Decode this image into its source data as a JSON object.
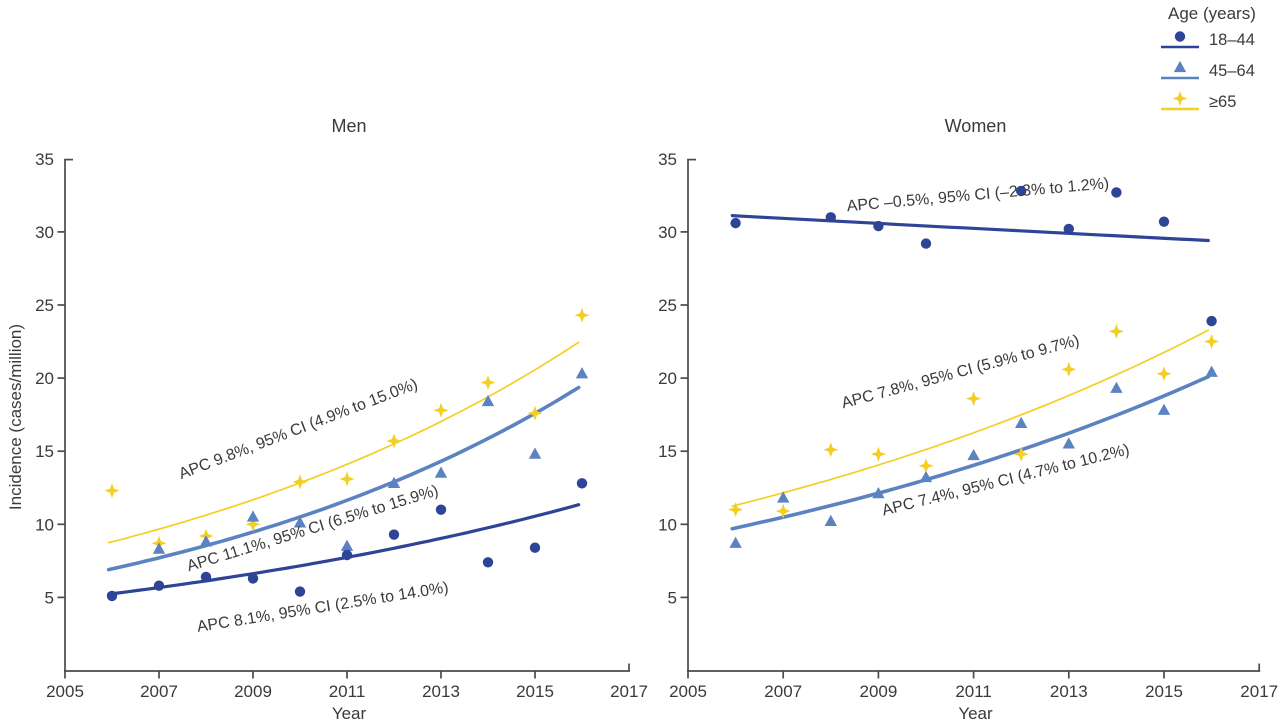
{
  "figure": {
    "colors": {
      "age_18_44": "#2e4496",
      "age_45_64": "#5b82c1",
      "age_65": "#f3cf26",
      "axis": "#4a4a4a",
      "text": "#3a3a3a"
    }
  },
  "legend": {
    "title": "Age (years)",
    "entries": [
      {
        "label": "18–44",
        "marker": "circle",
        "color": "#2e4496"
      },
      {
        "label": "45–64",
        "marker": "triangle",
        "color": "#5b82c1"
      },
      {
        "label": "≥65",
        "marker": "star",
        "color": "#f3cf26"
      }
    ]
  },
  "chart_data": [
    {
      "type": "scatter",
      "title": "Men",
      "xlabel": "Year",
      "ylabel": "Incidence (cases/million)",
      "xlim": [
        2005,
        2017
      ],
      "ylim": [
        0,
        35
      ],
      "x_ticks": [
        2005,
        2007,
        2009,
        2011,
        2013,
        2015,
        2017
      ],
      "y_ticks": [
        5,
        10,
        15,
        20,
        25,
        30,
        35
      ],
      "x": [
        2006,
        2007,
        2008,
        2009,
        2010,
        2011,
        2012,
        2013,
        2014,
        2015,
        2016
      ],
      "series": [
        {
          "name": "≥65",
          "marker": "star",
          "color": "#f3cf26",
          "values": [
            12.3,
            8.7,
            9.2,
            10.0,
            12.9,
            13.1,
            15.7,
            17.8,
            19.7,
            17.6,
            24.3
          ]
        },
        {
          "name": "45–64",
          "marker": "triangle",
          "color": "#5b82c1",
          "values": [
            null,
            8.3,
            8.8,
            10.5,
            10.1,
            8.5,
            12.8,
            13.5,
            18.4,
            14.8,
            20.3
          ]
        },
        {
          "name": "18–44",
          "marker": "circle",
          "color": "#2e4496",
          "values": [
            5.1,
            5.8,
            6.4,
            6.3,
            5.4,
            7.9,
            9.3,
            11.0,
            7.4,
            8.4,
            12.8
          ]
        }
      ],
      "trend_lines": [
        {
          "series": "≥65",
          "start_value": 8.8,
          "end_value": 22.6,
          "apc": "9.8%"
        },
        {
          "series": "45–64",
          "start_value": 6.95,
          "end_value": 19.5,
          "apc": "11.1%"
        },
        {
          "series": "18–44",
          "start_value": 5.25,
          "end_value": 11.4,
          "apc": "8.1%"
        }
      ],
      "annotations": [
        {
          "text": "APC 9.8%, 95% CI (4.9% to 15.0%)",
          "year": 2010.0,
          "value": 16.2,
          "rotation": -21
        },
        {
          "text": "APC 11.1%, 95% CI (6.5% to 15.9%)",
          "year": 2010.3,
          "value": 9.4,
          "rotation": -17
        },
        {
          "text": "APC 8.1%, 95% CI (2.5% to 14.0%)",
          "year": 2010.5,
          "value": 4.0,
          "rotation": -9
        }
      ]
    },
    {
      "type": "scatter",
      "title": "Women",
      "xlabel": "Year",
      "ylabel": "Incidence (cases/million)",
      "xlim": [
        2005,
        2017
      ],
      "ylim": [
        0,
        35
      ],
      "x_ticks": [
        2005,
        2007,
        2009,
        2011,
        2013,
        2015,
        2017
      ],
      "y_ticks": [
        5,
        10,
        15,
        20,
        25,
        30,
        35
      ],
      "x": [
        2006,
        2007,
        2008,
        2009,
        2010,
        2011,
        2012,
        2013,
        2014,
        2015,
        2016
      ],
      "series": [
        {
          "name": "≥65",
          "marker": "star",
          "color": "#f3cf26",
          "values": [
            11.0,
            10.9,
            15.1,
            14.8,
            14.0,
            18.6,
            14.8,
            20.6,
            23.2,
            20.3,
            22.5
          ]
        },
        {
          "name": "45–64",
          "marker": "triangle",
          "color": "#5b82c1",
          "values": [
            8.7,
            11.8,
            10.2,
            12.1,
            13.2,
            14.7,
            16.9,
            15.5,
            19.3,
            17.8,
            20.4
          ]
        },
        {
          "name": "18–44",
          "marker": "circle",
          "color": "#2e4496",
          "values": [
            30.6,
            null,
            31.0,
            30.4,
            29.2,
            null,
            32.8,
            30.2,
            32.7,
            30.7,
            23.9
          ]
        }
      ],
      "trend_lines": [
        {
          "series": "≥65",
          "start_value": 11.3,
          "end_value": 23.4,
          "apc": "7.8%"
        },
        {
          "series": "45–64",
          "start_value": 9.75,
          "end_value": 20.2,
          "apc": "7.4%"
        },
        {
          "series": "18–44",
          "start_value": 31.1,
          "end_value": 29.4,
          "apc": "–0.5%"
        }
      ],
      "annotations": [
        {
          "text": "APC –0.5%, 95% CI (–2.3% to 1.2%)",
          "year": 2011.1,
          "value": 32.2,
          "rotation": -5
        },
        {
          "text": "APC 7.8%, 95% CI (5.9% to 9.7%)",
          "year": 2010.75,
          "value": 20.1,
          "rotation": -15
        },
        {
          "text": "APC 7.4%, 95% CI (4.7% to 10.2%)",
          "year": 2011.7,
          "value": 12.7,
          "rotation": -14
        }
      ]
    }
  ]
}
